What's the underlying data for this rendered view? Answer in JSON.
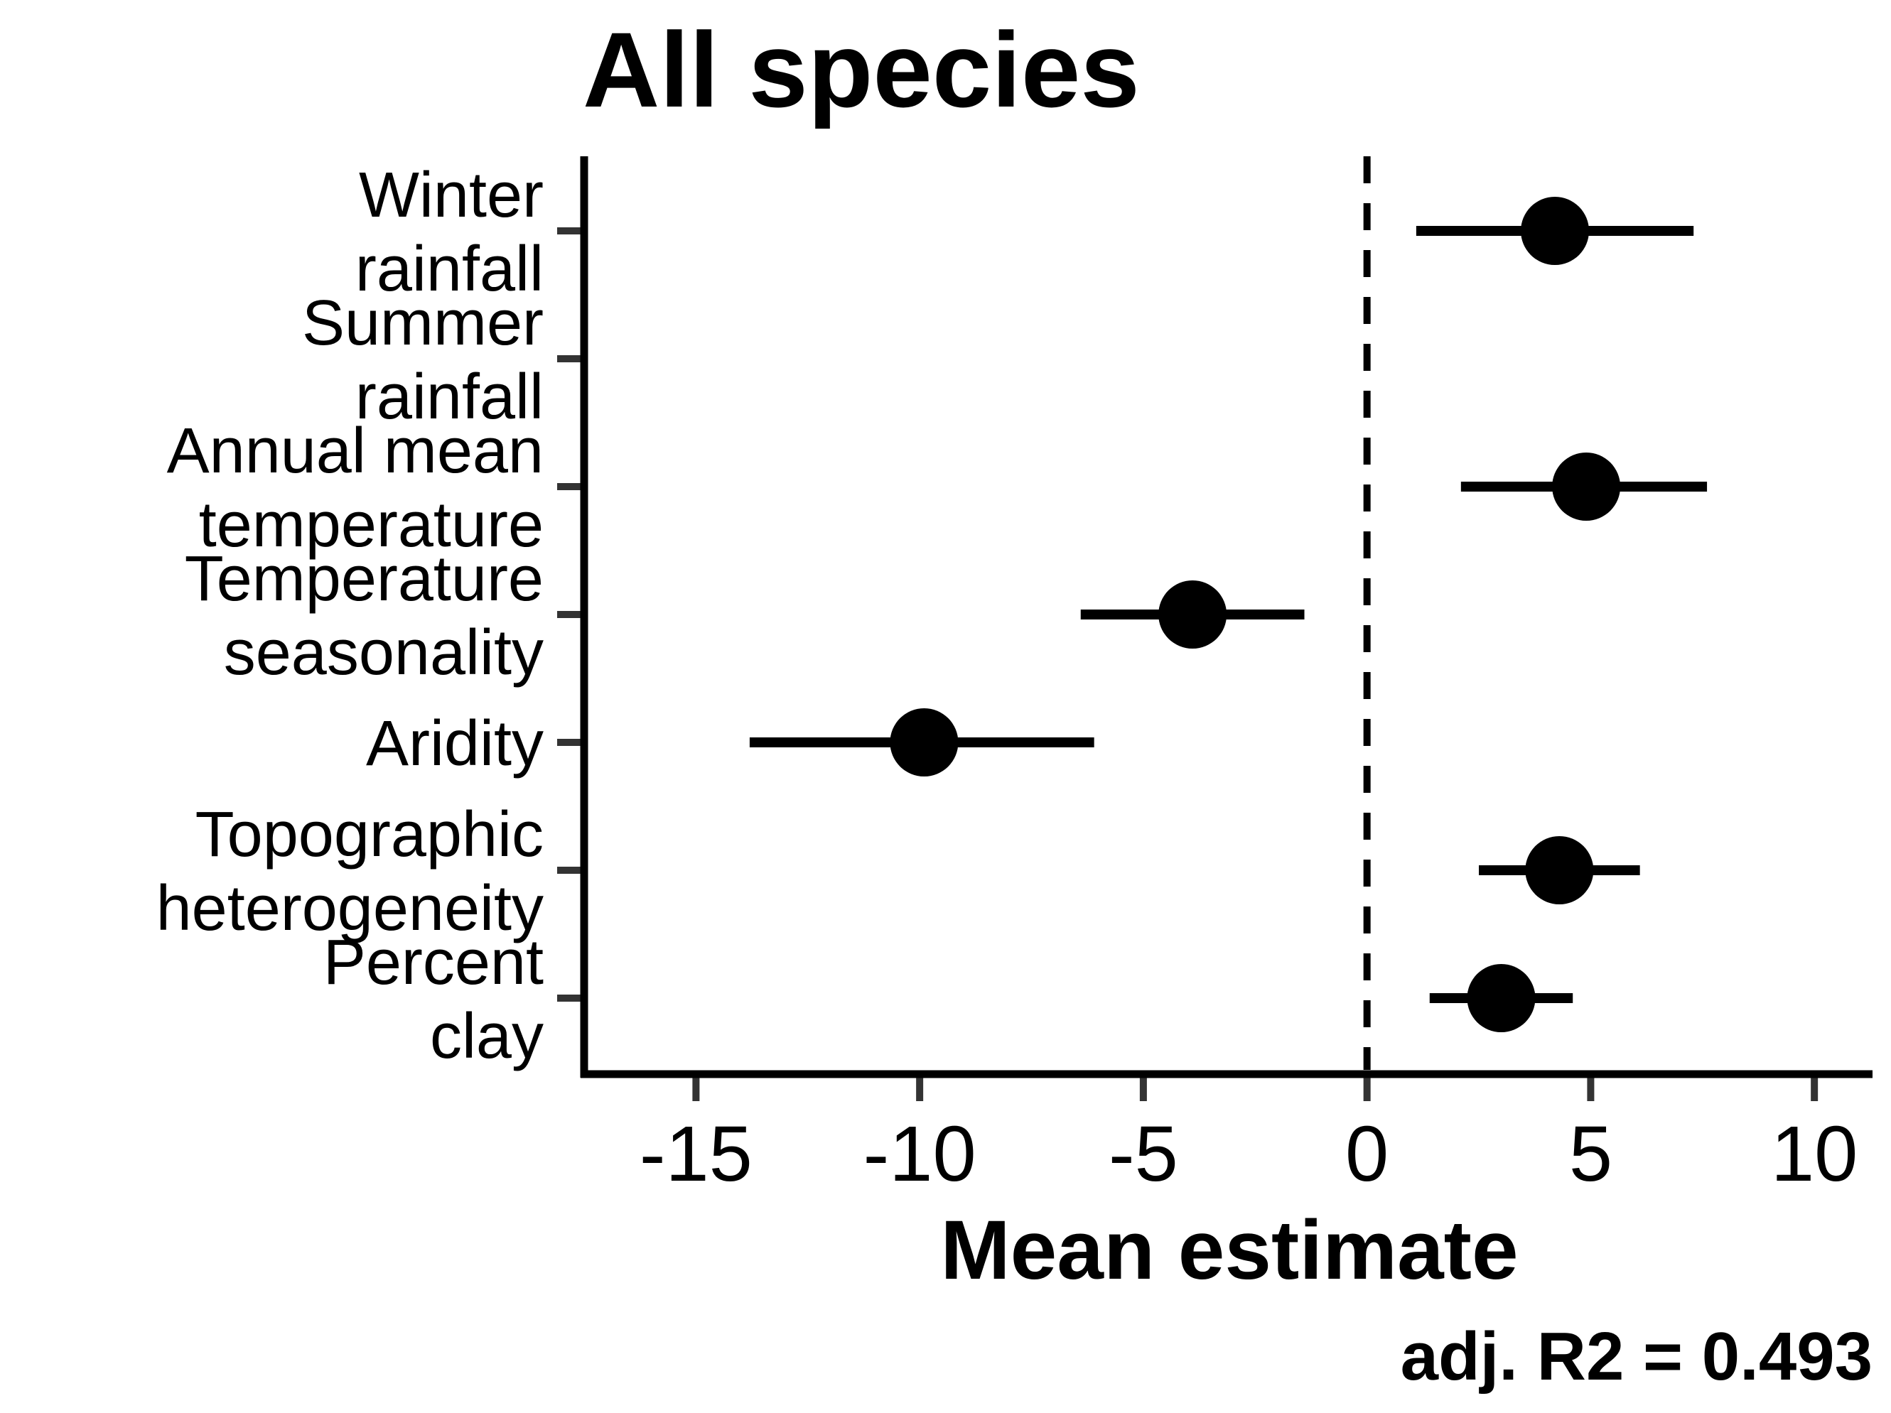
{
  "chart_data": {
    "type": "forest",
    "title": "All species",
    "xlabel": "Mean estimate",
    "ylabel": "",
    "annotation": "adj. R2 = 0.493",
    "xlim": [
      -17.5,
      11.3
    ],
    "xticks": [
      "-15",
      "-10",
      "-5",
      "0",
      "5",
      "10"
    ],
    "xtick_values": [
      -15,
      -10,
      -5,
      0,
      5,
      10
    ],
    "reference_line": 0,
    "reference_line_style": "dashed",
    "grid": false,
    "categories": [
      [
        "Winter",
        "rainfall"
      ],
      [
        "Summer",
        "rainfall"
      ],
      [
        "Annual mean",
        "temperature"
      ],
      [
        "Temperature",
        "seasonality"
      ],
      [
        "Aridity"
      ],
      [
        "Topographic",
        "heterogeneity"
      ],
      [
        "Percent",
        "clay"
      ]
    ],
    "estimates": [
      4.2,
      null,
      4.9,
      -3.9,
      -9.9,
      4.3,
      3.0
    ],
    "lower": [
      1.1,
      null,
      2.1,
      -6.4,
      -13.8,
      2.5,
      1.4
    ],
    "upper": [
      7.3,
      null,
      7.6,
      -1.4,
      -6.1,
      6.1,
      4.6
    ],
    "color": "#000000"
  }
}
